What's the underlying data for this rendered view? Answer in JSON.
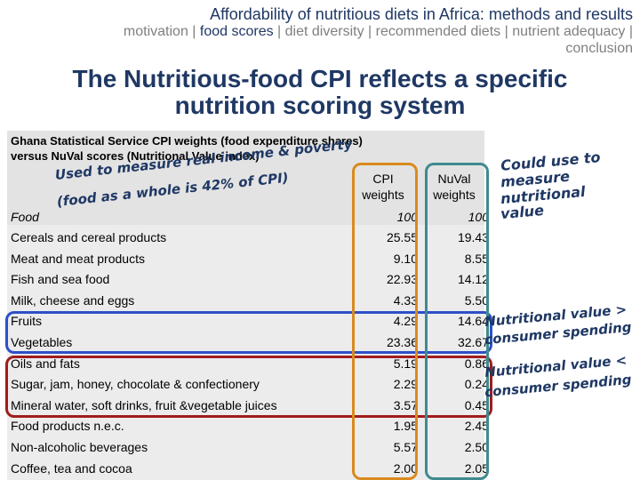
{
  "header": {
    "title": "Affordability of nutritious diets in Africa: methods and results",
    "nav": {
      "motivation": "motivation",
      "sep1": " | ",
      "food_scores": "food scores",
      "sep2": " | ",
      "diet_diversity": "diet diversity",
      "sep3": " | ",
      "recommended_diets": "recommended diets",
      "sep4": " | ",
      "nutrient_adequacy": "nutrient adequacy",
      "sep5": " |",
      "conclusion": "conclusion"
    }
  },
  "headline": {
    "line1": "The Nutritious-food CPI reflects a specific",
    "line2": "nutrition scoring system"
  },
  "table": {
    "subtitle_line1": "Ghana Statistical Service CPI weights (food expenditure shares)",
    "subtitle_line2": "versus NuVal scores (Nutritional Value index)",
    "note_line1": "Used to measure real income & poverty",
    "note_line2": "(food as a whole is 42% of CPI)",
    "col_cpi_1": "CPI",
    "col_cpi_2": "weights",
    "col_nuval_1": "NuVal",
    "col_nuval_2": "weights",
    "food_row": {
      "label": "Food",
      "cpi": "100",
      "nuval": "100"
    },
    "rows": [
      {
        "label": "Cereals and cereal products",
        "cpi": "25.55",
        "nuval": "19.43"
      },
      {
        "label": "Meat and meat products",
        "cpi": "9.10",
        "nuval": "8.55"
      },
      {
        "label": "Fish and sea food",
        "cpi": "22.93",
        "nuval": "14.12"
      },
      {
        "label": "Milk, cheese and eggs",
        "cpi": "4.33",
        "nuval": "5.50"
      },
      {
        "label": "Fruits",
        "cpi": "4.29",
        "nuval": "14.64"
      },
      {
        "label": "Vegetables",
        "cpi": "23.36",
        "nuval": "32.67"
      },
      {
        "label": "Oils and fats",
        "cpi": "5.19",
        "nuval": "0.86"
      },
      {
        "label": "Sugar, jam, honey, chocolate & confectionery",
        "cpi": "2.29",
        "nuval": "0.24"
      },
      {
        "label": "Mineral water, soft drinks, fruit &vegetable juices",
        "cpi": "3.57",
        "nuval": "0.45"
      },
      {
        "label": "Food products n.e.c.",
        "cpi": "1.95",
        "nuval": "2.45"
      },
      {
        "label": "Non-alcoholic beverages",
        "cpi": "5.57",
        "nuval": "2.50"
      },
      {
        "label": "Coffee, tea and cocoa",
        "cpi": "2.00",
        "nuval": "2.05"
      }
    ]
  },
  "annotations": {
    "nuval_note_1": "Could use to",
    "nuval_note_2": "measure",
    "nuval_note_3": "nutritional",
    "nuval_note_4": "value",
    "greater_1": "Nutritional value >",
    "greater_2": "consumer spending",
    "less_1": "Nutritional value <",
    "less_2": "consumer spending"
  },
  "colors": {
    "title_blue": "#1f3864",
    "box_blue": "#2e4fc9",
    "box_red": "#a01c1c",
    "box_orange": "#d98a1e",
    "box_teal": "#3f8a8f"
  }
}
